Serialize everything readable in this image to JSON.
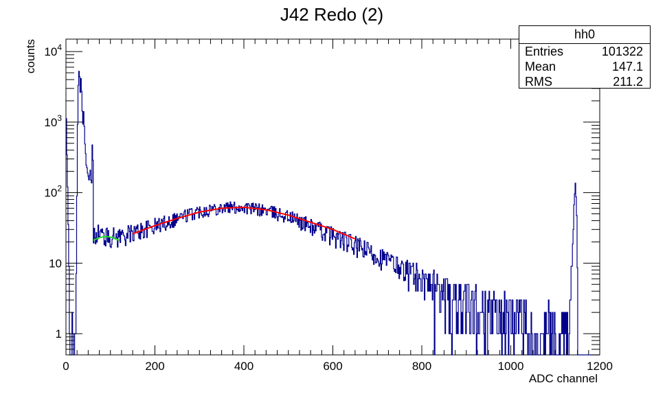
{
  "chart_data": {
    "type": "histogram",
    "title": "J42 Redo (2)",
    "xlabel": "ADC channel",
    "ylabel": "counts",
    "xlim": [
      0,
      1200
    ],
    "ylim": [
      0.5,
      15000
    ],
    "yscale": "log",
    "x_ticks": [
      0,
      200,
      400,
      600,
      800,
      1000,
      1200
    ],
    "y_ticks": [
      {
        "value": 1,
        "label": "1"
      },
      {
        "value": 10,
        "label": "10"
      },
      {
        "value": 100,
        "label": "10",
        "sup": "2"
      },
      {
        "value": 1000,
        "label": "10",
        "sup": "3"
      },
      {
        "value": 10000,
        "label": "10",
        "sup": "4"
      }
    ],
    "histogram_color": "#00008b",
    "histogram_keypoints": [
      [
        0,
        2000
      ],
      [
        5,
        40
      ],
      [
        10,
        0.4
      ],
      [
        14,
        1.5
      ],
      [
        17,
        1
      ],
      [
        20,
        0.4
      ],
      [
        22,
        2
      ],
      [
        24,
        20
      ],
      [
        26,
        800
      ],
      [
        28,
        4000
      ],
      [
        30,
        6000
      ],
      [
        32,
        2500
      ],
      [
        34,
        4500
      ],
      [
        36,
        2000
      ],
      [
        38,
        900
      ],
      [
        40,
        1500
      ],
      [
        42,
        600
      ],
      [
        45,
        300
      ],
      [
        48,
        200
      ],
      [
        52,
        140
      ],
      [
        55,
        200
      ],
      [
        58,
        120
      ],
      [
        60,
        1100
      ],
      [
        62,
        25
      ],
      [
        70,
        28
      ],
      [
        90,
        24
      ],
      [
        110,
        24
      ],
      [
        140,
        26
      ],
      [
        200,
        34
      ],
      [
        250,
        44
      ],
      [
        300,
        55
      ],
      [
        350,
        62
      ],
      [
        400,
        62
      ],
      [
        450,
        56
      ],
      [
        500,
        46
      ],
      [
        550,
        34
      ],
      [
        600,
        25
      ],
      [
        650,
        18
      ],
      [
        700,
        13
      ],
      [
        750,
        9
      ],
      [
        800,
        6
      ],
      [
        850,
        4
      ],
      [
        900,
        3
      ],
      [
        950,
        2.2
      ],
      [
        1000,
        1.6
      ],
      [
        1050,
        1.3
      ],
      [
        1100,
        1.2
      ],
      [
        1130,
        1.5
      ],
      [
        1138,
        10
      ],
      [
        1142,
        60
      ],
      [
        1145,
        150
      ],
      [
        1148,
        60
      ],
      [
        1150,
        8
      ],
      [
        1152,
        0.4
      ],
      [
        1200,
        0.4
      ]
    ],
    "fits": [
      {
        "color": "#22dd22",
        "xrange": [
          62,
          120
        ],
        "points": [
          [
            62,
            21
          ],
          [
            75,
            23
          ],
          [
            90,
            24
          ],
          [
            105,
            23
          ],
          [
            120,
            21
          ]
        ]
      },
      {
        "color": "#ff0000",
        "xrange": [
          150,
          650
        ],
        "points": [
          [
            150,
            26
          ],
          [
            200,
            34
          ],
          [
            250,
            43
          ],
          [
            300,
            53
          ],
          [
            350,
            60
          ],
          [
            400,
            62
          ],
          [
            450,
            57
          ],
          [
            500,
            48
          ],
          [
            550,
            38
          ],
          [
            600,
            30
          ],
          [
            650,
            22
          ]
        ]
      }
    ],
    "grid": false,
    "legend": "none",
    "stats_box": {
      "title": "hh0",
      "rows": [
        {
          "label": "Entries",
          "value": "101322"
        },
        {
          "label": "Mean",
          "value": "147.1"
        },
        {
          "label": "RMS",
          "value": "211.2"
        }
      ]
    }
  }
}
